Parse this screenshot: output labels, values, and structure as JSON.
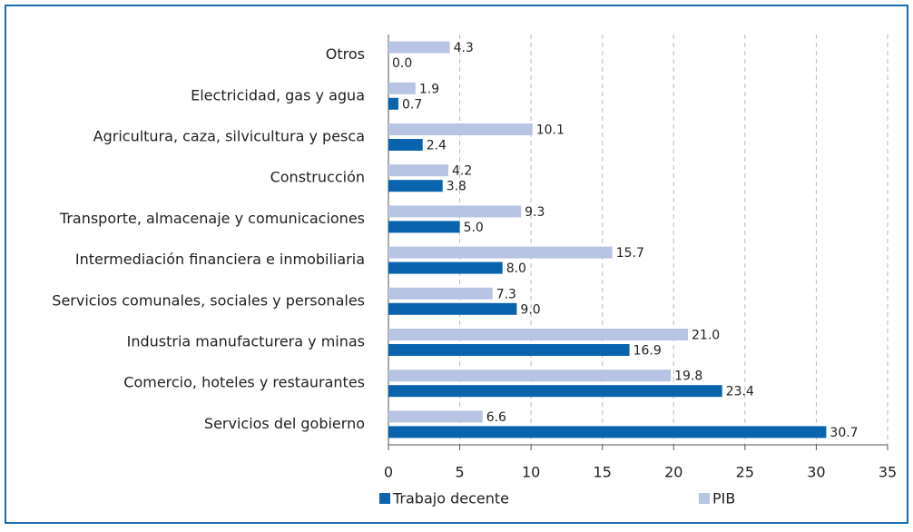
{
  "chart_data": {
    "type": "bar",
    "orientation": "horizontal",
    "categories": [
      "Otros",
      "Electricidad, gas y agua",
      "Agricultura, caza, silvicultura y pesca",
      "Construcción",
      "Transporte, almacenaje y comunicaciones",
      "Intermediación financiera e inmobiliaria",
      "Servicios comunales, sociales y personales",
      "Industria manufacturera y minas",
      "Comercio, hoteles y restaurantes",
      "Servicios del gobierno"
    ],
    "series": [
      {
        "name": "Trabajo decente",
        "color": "#0a64ad",
        "values": [
          0.0,
          0.7,
          2.4,
          3.8,
          5.0,
          8.0,
          9.0,
          16.9,
          23.4,
          30.7
        ],
        "value_labels": [
          "0.0",
          "0.7",
          "2.4",
          "3.8",
          "5.0",
          "8.0",
          "9.0",
          "16.9",
          "23.4",
          "30.7"
        ]
      },
      {
        "name": "PIB",
        "color": "#b8c4e4",
        "values": [
          4.3,
          1.9,
          10.1,
          4.2,
          9.3,
          15.7,
          7.3,
          21.0,
          19.8,
          6.6
        ],
        "value_labels": [
          "4.3",
          "1.9",
          "10.1",
          "4.2",
          "9.3",
          "15.7",
          "7.3",
          "21.0",
          "19.8",
          "6.6"
        ]
      }
    ],
    "xlim": [
      0,
      35
    ],
    "xticks": [
      0,
      5,
      10,
      15,
      20,
      25,
      30,
      35
    ],
    "grid": true,
    "legend": "bottom"
  }
}
